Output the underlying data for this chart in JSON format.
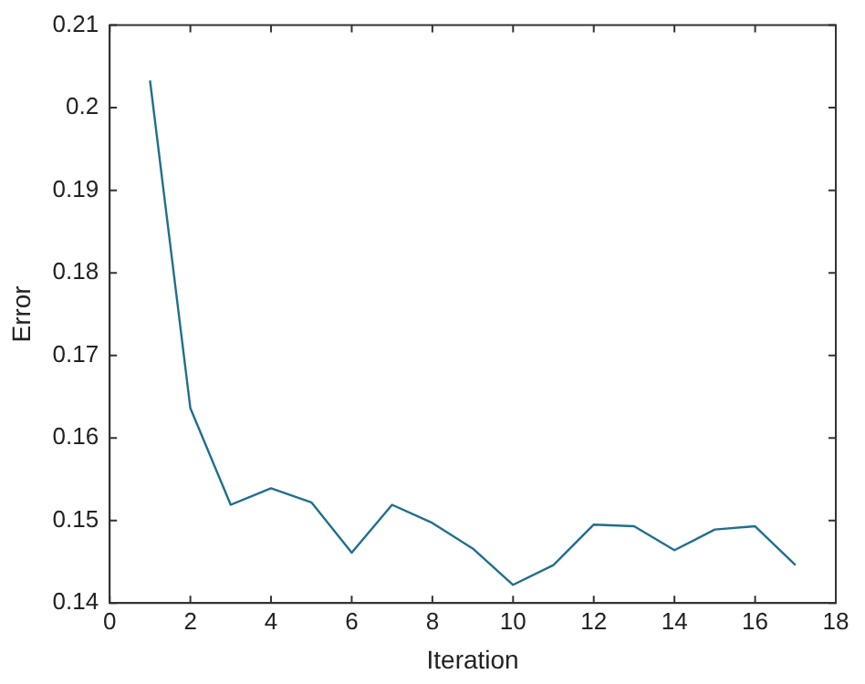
{
  "chart_data": {
    "type": "line",
    "xlabel": "Iteration",
    "ylabel": "Error",
    "x": [
      1,
      2,
      3,
      4,
      5,
      6,
      7,
      8,
      9,
      10,
      11,
      12,
      13,
      14,
      15,
      16,
      17
    ],
    "series": [
      {
        "color": "#1f6f8f",
        "values": [
          0.2033,
          0.1636,
          0.1519,
          0.1539,
          0.1522,
          0.1461,
          0.1519,
          0.1497,
          0.1466,
          0.1422,
          0.1446,
          0.1495,
          0.1493,
          0.1464,
          0.1489,
          0.1493,
          0.1446
        ]
      }
    ],
    "xlim": [
      0,
      18
    ],
    "xticks": [
      0,
      2,
      4,
      6,
      8,
      10,
      12,
      14,
      16,
      18
    ],
    "ylim": [
      0.14,
      0.21
    ],
    "yticks": [
      0.14,
      0.15,
      0.16,
      0.17,
      0.18,
      0.19,
      0.2,
      0.21
    ],
    "grid": false,
    "legend": false,
    "marker": "none",
    "line_style": "solid"
  }
}
